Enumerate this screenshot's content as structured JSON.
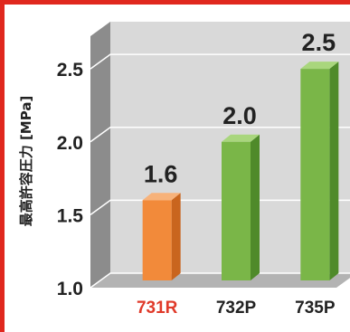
{
  "chart_data": {
    "type": "bar",
    "categories": [
      "731R",
      "732P",
      "735P"
    ],
    "values": [
      1.6,
      2.0,
      2.5
    ],
    "data_labels": [
      "1.6",
      "2.0",
      "2.5"
    ],
    "ylabel": "最高許容圧力 [MPa]",
    "yticks": [
      "1.0",
      "1.5",
      "2.0",
      "2.5"
    ],
    "ylim": [
      1.0,
      2.5
    ],
    "grid": true,
    "style": "3d",
    "colors": {
      "bars": [
        "#f28a3a",
        "#7ab648",
        "#7ab648"
      ],
      "bar_sides": [
        "#c9651e",
        "#4f8a2a",
        "#4f8a2a"
      ],
      "bar_tops": [
        "#f7b27a",
        "#a9d67d",
        "#a9d67d"
      ],
      "category_labels": [
        "#e03a2a",
        "#222222",
        "#222222"
      ],
      "wall": "#d9d9d9",
      "left_wall": "#8c8c8c",
      "floor": "#b3b3b3",
      "frame": "#e0281e"
    }
  }
}
